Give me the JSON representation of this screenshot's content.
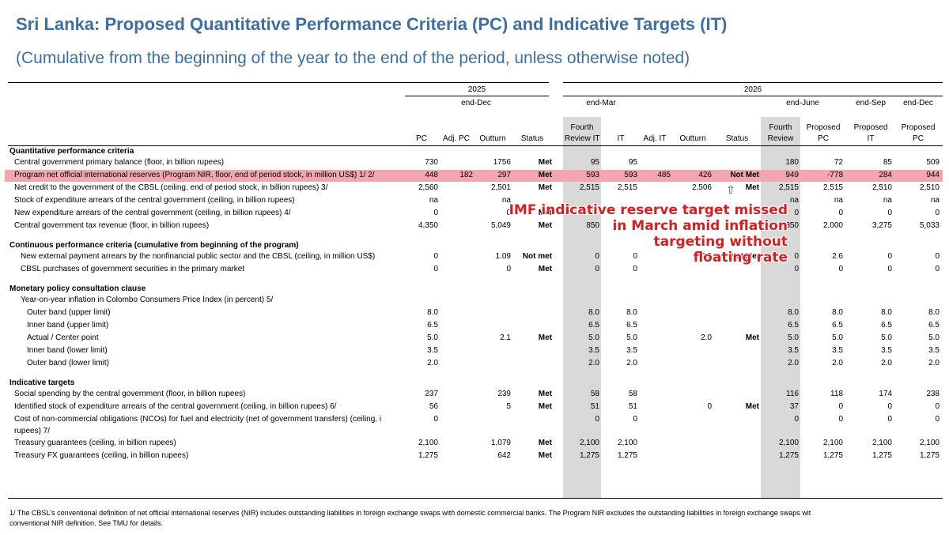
{
  "title": "Sri Lanka: Proposed Quantitative Performance Criteria (PC) and Indicative Targets (IT)",
  "subtitle": "(Cumulative from the beginning of the year to the end of the period, unless otherwise noted)",
  "header": {
    "year_2025": "2025",
    "year_2026": "2026",
    "end_dec_2025": "end-Dec",
    "end_mar": "end-Mar",
    "end_june": "end-June",
    "end_sep": "end-Sep",
    "end_dec_2026": "end-Dec",
    "cols": [
      [
        "PC"
      ],
      [
        "Adj. PC"
      ],
      [
        "Outturn"
      ],
      [
        "Status"
      ],
      [
        "Fourth",
        "Review IT"
      ],
      [
        "IT"
      ],
      [
        "Adj. IT"
      ],
      [
        "Outturn"
      ],
      [
        "Status"
      ],
      [
        "Fourth",
        "Review"
      ],
      [
        "Proposed",
        "PC"
      ],
      [
        "Proposed",
        "IT"
      ],
      [
        "Proposed",
        "PC"
      ]
    ]
  },
  "sections": [
    {
      "title": "Quantitative performance criteria",
      "rows": [
        {
          "label": "Central government primary balance (floor, in billion rupees)",
          "indent": 0,
          "v": [
            "730",
            "",
            "1756",
            "Met",
            "95",
            "95",
            "",
            "",
            "",
            "180",
            "72",
            "85",
            "509"
          ]
        },
        {
          "label": "Program net official international reserves (Program NIR, floor, end of period stock, in million US$) 1/ 2/",
          "indent": 0,
          "highlight": true,
          "v": [
            "448",
            "182",
            "297",
            "Met",
            "593",
            "593",
            "485",
            "426",
            "Not Met",
            "949",
            "-778",
            "284",
            "944"
          ]
        },
        {
          "label": "Net credit to the government of the CBSL (ceiling, end of period stock, in billion rupees) 3/",
          "indent": 0,
          "v": [
            "2,560",
            "",
            "2,501",
            "Met",
            "2,515",
            "2,515",
            "",
            "2,506",
            "Met",
            "2,515",
            "2,515",
            "2,510",
            "2,510"
          ]
        },
        {
          "label": "Stock of expenditure arrears of the central government (ceiling, in billion rupees)",
          "indent": 0,
          "v": [
            "na",
            "",
            "na",
            "",
            "",
            "",
            "",
            "",
            "",
            "na",
            "na",
            "na",
            "na"
          ]
        },
        {
          "label": "New expenditure arrears of the central government (ceiling, in billion rupees) 4/",
          "indent": 0,
          "v": [
            "0",
            "",
            "0",
            "Met",
            "",
            "",
            "",
            "",
            "",
            "0",
            "0",
            "0",
            "0"
          ]
        },
        {
          "label": "Central government tax revenue (floor, in billion rupees)",
          "indent": 0,
          "v": [
            "4,350",
            "",
            "5,049",
            "Met",
            "850",
            "8",
            "",
            "",
            "",
            "850",
            "2,000",
            "3,275",
            "5,033"
          ]
        }
      ]
    },
    {
      "title": "Continuous performance criteria (cumulative from beginning of the program)",
      "rows": [
        {
          "label": "New external payment arrears by the nonfinancial public sector and the CBSL (ceiling, in million US$)",
          "indent": 1,
          "v": [
            "0",
            "",
            "1.09",
            "Not met",
            "0",
            "0",
            "",
            "2.5",
            "Not Met",
            "0",
            "2.6",
            "0",
            "0"
          ]
        },
        {
          "label": "CBSL purchases of government securities in the primary market",
          "indent": 1,
          "v": [
            "0",
            "",
            "0",
            "Met",
            "0",
            "0",
            "",
            "",
            "",
            "0",
            "0",
            "0",
            "0"
          ]
        }
      ]
    },
    {
      "title": "Monetary policy consultation clause",
      "rows": [
        {
          "label": "Year-on-year inflation in Colombo Consumers Price Index (in percent) 5/",
          "indent": 1,
          "v": [
            "",
            "",
            "",
            "",
            "",
            "",
            "",
            "",
            "",
            "",
            "",
            "",
            ""
          ]
        },
        {
          "label": "Outer band (upper limit)",
          "indent": 2,
          "v": [
            "8.0",
            "",
            "",
            "",
            "8.0",
            "8.0",
            "",
            "",
            "",
            "8.0",
            "8.0",
            "8.0",
            "8.0"
          ]
        },
        {
          "label": "Inner band (upper limit)",
          "indent": 2,
          "v": [
            "6.5",
            "",
            "",
            "",
            "6.5",
            "6.5",
            "",
            "",
            "",
            "6.5",
            "6.5",
            "6.5",
            "6.5"
          ]
        },
        {
          "label": "Actual / Center point",
          "indent": 2,
          "v": [
            "5.0",
            "",
            "2.1",
            "Met",
            "5.0",
            "5.0",
            "",
            "2.0",
            "Met",
            "5.0",
            "5.0",
            "5.0",
            "5.0"
          ]
        },
        {
          "label": "Inner band (lower limit)",
          "indent": 2,
          "v": [
            "3.5",
            "",
            "",
            "",
            "3.5",
            "3.5",
            "",
            "",
            "",
            "3.5",
            "3.5",
            "3.5",
            "3.5"
          ]
        },
        {
          "label": "Outer band (lower limit)",
          "indent": 2,
          "v": [
            "2.0",
            "",
            "",
            "",
            "2.0",
            "2.0",
            "",
            "",
            "",
            "2.0",
            "2.0",
            "2.0",
            "2.0"
          ]
        }
      ]
    },
    {
      "title": "Indicative targets",
      "rows": [
        {
          "label": "Social spending by the central government (floor, in billion rupees)",
          "indent": 0,
          "v": [
            "237",
            "",
            "239",
            "Met",
            "58",
            "58",
            "",
            "",
            "",
            "116",
            "118",
            "174",
            "238"
          ]
        },
        {
          "label": "Identified stock of expenditure arrears of the central government (ceiling, in billion rupees) 6/",
          "indent": 0,
          "v": [
            "56",
            "",
            "5",
            "Met",
            "51",
            "51",
            "",
            "0",
            "Met",
            "37",
            "0",
            "0",
            "0"
          ]
        },
        {
          "label": "Cost of non-commercial obligations (NCOs) for fuel and electricity (net of government transfers) (ceiling, i",
          "label2": "rupees) 7/",
          "indent": 0,
          "v": [
            "0",
            "",
            "",
            "",
            "0",
            "0",
            "",
            "",
            "",
            "0",
            "0",
            "0",
            "0"
          ]
        },
        {
          "label": "Treasury guarantees (ceiling, in billion rupees)",
          "indent": 0,
          "v": [
            "2,100",
            "",
            "1,079",
            "Met",
            "2,100",
            "2,100",
            "",
            "",
            "",
            "2,100",
            "2,100",
            "2,100",
            "2,100"
          ]
        },
        {
          "label": "Treasury FX guarantees (ceiling, in billion rupees)",
          "indent": 0,
          "v": [
            "1,275",
            "",
            "642",
            "Met",
            "1,275",
            "1,275",
            "",
            "",
            "",
            "1,275",
            "1,275",
            "1,275",
            "1,275"
          ]
        }
      ]
    }
  ],
  "annotation": [
    "IMF indicative reserve target missed",
    "in March amid inflation",
    "targeting without",
    "floating rate"
  ],
  "footnote": [
    "1/ The CBSL's conventional definition of net official international reserves (NIR) includes outstanding liabilities in foreign exchange swaps with domestic commercial banks. The Program NIR excludes the outstanding liabilities in foreign exchange swaps wit",
    "conventional NIR definition. See TMU for details."
  ],
  "colors": {
    "title": "#3d6fa3",
    "highlight": "#f4a6b0",
    "shade": "#d9d9d9",
    "annotation": "#d42020"
  }
}
